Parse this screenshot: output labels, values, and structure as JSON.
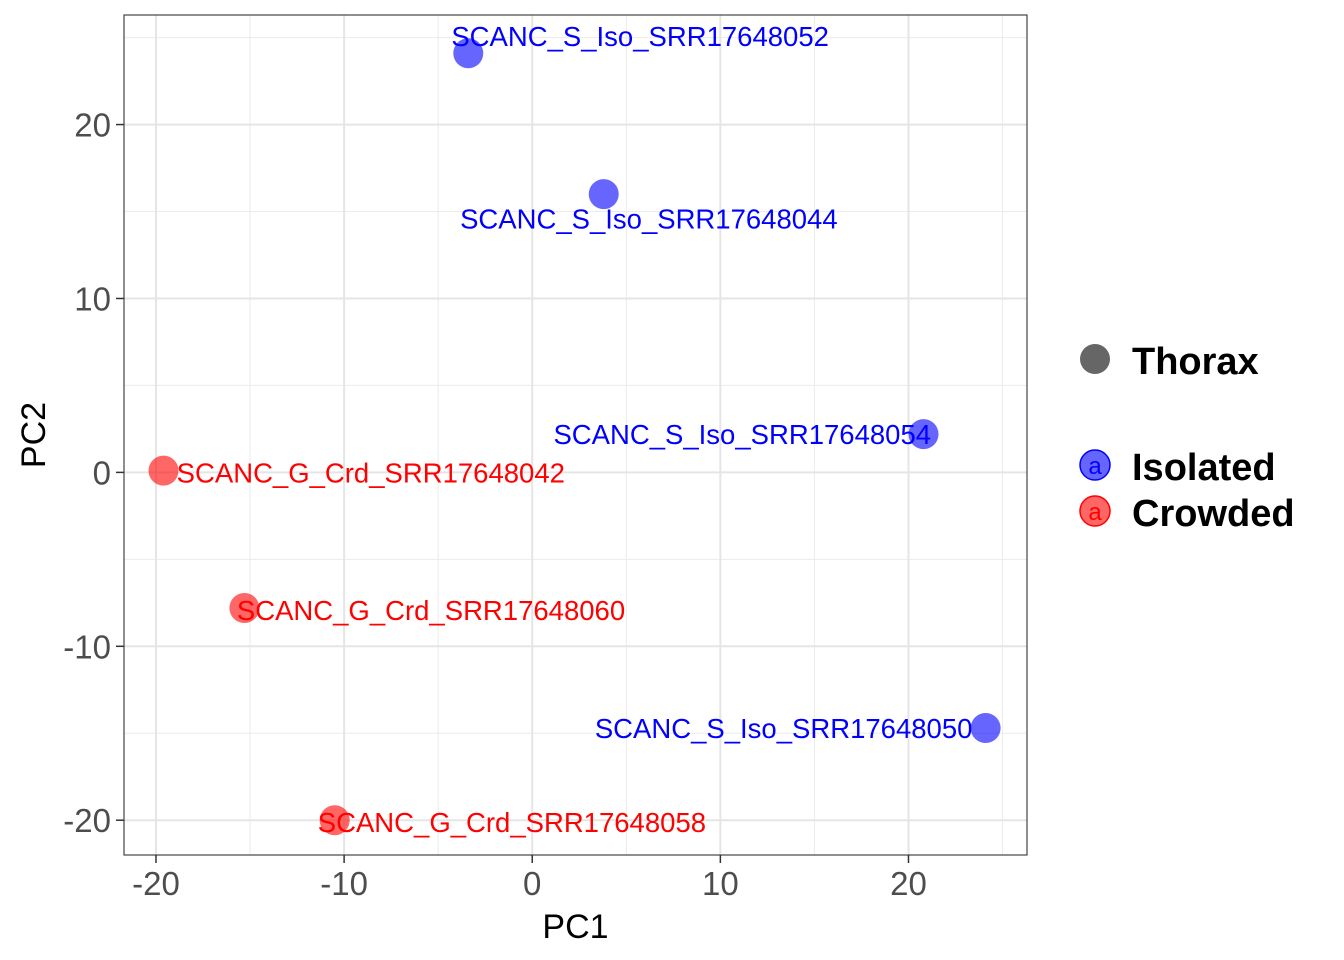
{
  "chart_data": {
    "type": "scatter",
    "xlabel": "PC1",
    "ylabel": "PC2",
    "xlim": [
      -21.7,
      26.3
    ],
    "ylim": [
      -22.0,
      26.3
    ],
    "x_ticks": [
      -20,
      -10,
      0,
      10,
      20
    ],
    "x_tick_labels": [
      "-20",
      "-10",
      "0",
      "10",
      "20"
    ],
    "y_ticks": [
      -20,
      -10,
      0,
      10,
      20
    ],
    "y_tick_labels": [
      "-20",
      "-10",
      "0",
      "10",
      "20"
    ],
    "x_minor": [
      -15,
      -5,
      5,
      15,
      25
    ],
    "y_minor": [
      -15,
      -5,
      5,
      15,
      25
    ],
    "grid": true,
    "legend_position": "right",
    "shape_legend": {
      "entries": [
        {
          "label": "Thorax",
          "color": "#666666"
        }
      ]
    },
    "color_legend": {
      "glyph": "a",
      "entries": [
        {
          "label": "Isolated",
          "color": "#0000ff"
        },
        {
          "label": "Crowded",
          "color": "#ff0000"
        }
      ]
    },
    "series": [
      {
        "group": "Isolated",
        "color": "#0000ff",
        "points": [
          {
            "x": -3.4,
            "y": 24.1,
            "label": "SCANC_S_Iso_SRR17648052",
            "anchor": "start",
            "dx": -0.9,
            "dy": 1.0
          },
          {
            "x": 3.8,
            "y": 16.0,
            "label": "SCANC_S_Iso_SRR17648044",
            "anchor": "middle",
            "dx": 2.4,
            "dy": -1.4
          },
          {
            "x": 20.8,
            "y": 2.2,
            "label": "SCANC_S_Iso_SRR17648054",
            "anchor": "end",
            "dx": 0.4,
            "dy": 0.0
          },
          {
            "x": 24.1,
            "y": -14.7,
            "label": "SCANC_S_Iso_SRR17648050",
            "anchor": "end",
            "dx": -0.7,
            "dy": 0.0
          }
        ]
      },
      {
        "group": "Crowded",
        "color": "#ff0000",
        "points": [
          {
            "x": -19.6,
            "y": 0.1,
            "label": "SCANC_G_Crd_SRR17648042",
            "anchor": "start",
            "dx": 0.7,
            "dy": -0.1
          },
          {
            "x": -15.3,
            "y": -7.8,
            "label": "SCANC_G_Crd_SRR17648060",
            "anchor": "start",
            "dx": -0.4,
            "dy": -0.1
          },
          {
            "x": -10.5,
            "y": -20.0,
            "label": "SCANC_G_Crd_SRR17648058",
            "anchor": "start",
            "dx": -0.9,
            "dy": -0.1
          }
        ]
      }
    ]
  }
}
